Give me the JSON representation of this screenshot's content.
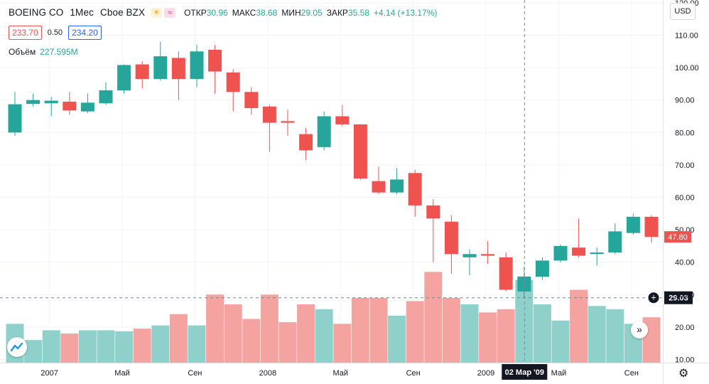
{
  "header": {
    "symbol": "BOEING CO",
    "interval": "1Мес",
    "exchange": "Cboe BZX",
    "ohlc": [
      {
        "label": "ОТКР",
        "value": "30.96"
      },
      {
        "label": "МАКС",
        "value": "38.68"
      },
      {
        "label": "МИН",
        "value": "29.05"
      },
      {
        "label": "ЗАКР",
        "value": "35.58"
      }
    ],
    "change": "+4.14 (+13.17%)",
    "bid": "233.70",
    "spread": "0.50",
    "ask": "234.20",
    "volume_label": "Объём",
    "volume_value": "227.595M",
    "currency": "USD"
  },
  "colors": {
    "up": "#26a69a",
    "down": "#ef5350",
    "up_vol": "#8fd1ca",
    "down_vol": "#f5a3a1"
  },
  "crosshair": {
    "x_label": "02 Мар '09",
    "y_label": "29.03"
  },
  "last_price_label": "47.80",
  "chart_data": {
    "type": "candlestick",
    "y_axis": {
      "ticks": [
        "10.00",
        "20.00",
        "30.00",
        "40.00",
        "50.00",
        "60.00",
        "70.00",
        "80.00",
        "90.00",
        "100.00",
        "110.00",
        "120.00"
      ],
      "range": [
        9,
        121
      ]
    },
    "x_axis": {
      "labels": [
        "2007",
        "Май",
        "Сен",
        "2008",
        "Май",
        "Сен",
        "2009",
        "Май",
        "Сен"
      ]
    },
    "candles": [
      {
        "o": 80.0,
        "h": 92.5,
        "l": 79.0,
        "c": 88.7
      },
      {
        "o": 88.8,
        "h": 92.0,
        "l": 88.0,
        "c": 90.0
      },
      {
        "o": 89.0,
        "h": 91.0,
        "l": 85.0,
        "c": 89.8
      },
      {
        "o": 89.5,
        "h": 92.5,
        "l": 85.5,
        "c": 86.8
      },
      {
        "o": 86.5,
        "h": 92.0,
        "l": 86.0,
        "c": 89.2
      },
      {
        "o": 89.0,
        "h": 95.5,
        "l": 88.5,
        "c": 93.0
      },
      {
        "o": 93.0,
        "h": 101.0,
        "l": 92.0,
        "c": 100.8
      },
      {
        "o": 101.0,
        "h": 102.0,
        "l": 93.5,
        "c": 96.5
      },
      {
        "o": 96.5,
        "h": 108.0,
        "l": 96.0,
        "c": 103.5
      },
      {
        "o": 103.0,
        "h": 105.0,
        "l": 90.0,
        "c": 96.5
      },
      {
        "o": 96.5,
        "h": 107.0,
        "l": 94.0,
        "c": 105.0
      },
      {
        "o": 105.5,
        "h": 107.0,
        "l": 92.0,
        "c": 98.8
      },
      {
        "o": 98.5,
        "h": 99.5,
        "l": 86.5,
        "c": 92.5
      },
      {
        "o": 92.5,
        "h": 94.0,
        "l": 85.5,
        "c": 87.5
      },
      {
        "o": 88.0,
        "h": 88.5,
        "l": 74.0,
        "c": 83.0
      },
      {
        "o": 83.5,
        "h": 87.0,
        "l": 79.0,
        "c": 83.0
      },
      {
        "o": 79.5,
        "h": 81.5,
        "l": 71.5,
        "c": 74.5
      },
      {
        "o": 75.5,
        "h": 86.5,
        "l": 74.5,
        "c": 85.0
      },
      {
        "o": 85.0,
        "h": 88.5,
        "l": 82.0,
        "c": 82.5
      },
      {
        "o": 82.5,
        "h": 82.5,
        "l": 65.5,
        "c": 65.8
      },
      {
        "o": 65.0,
        "h": 69.5,
        "l": 61.0,
        "c": 61.5
      },
      {
        "o": 61.5,
        "h": 69.0,
        "l": 61.0,
        "c": 65.5
      },
      {
        "o": 67.5,
        "h": 68.5,
        "l": 54.0,
        "c": 57.5
      },
      {
        "o": 57.5,
        "h": 59.5,
        "l": 40.0,
        "c": 53.5
      },
      {
        "o": 52.5,
        "h": 54.5,
        "l": 36.5,
        "c": 42.5
      },
      {
        "o": 41.5,
        "h": 44.0,
        "l": 36.0,
        "c": 42.5
      },
      {
        "o": 42.5,
        "h": 46.5,
        "l": 39.5,
        "c": 42.0
      },
      {
        "o": 41.5,
        "h": 43.0,
        "l": 31.0,
        "c": 31.5
      },
      {
        "o": 30.96,
        "h": 38.68,
        "l": 29.05,
        "c": 35.58
      },
      {
        "o": 35.5,
        "h": 41.5,
        "l": 34.5,
        "c": 40.5
      },
      {
        "o": 40.5,
        "h": 45.5,
        "l": 40.0,
        "c": 45.0
      },
      {
        "o": 44.5,
        "h": 53.5,
        "l": 41.5,
        "c": 42.0
      },
      {
        "o": 42.5,
        "h": 44.5,
        "l": 39.0,
        "c": 43.0
      },
      {
        "o": 43.0,
        "h": 52.0,
        "l": 42.5,
        "c": 49.5
      },
      {
        "o": 49.0,
        "h": 55.0,
        "l": 48.5,
        "c": 54.0
      },
      {
        "o": 54.0,
        "h": 54.5,
        "l": 46.0,
        "c": 47.8
      }
    ],
    "volume_scale_max": 42
  }
}
